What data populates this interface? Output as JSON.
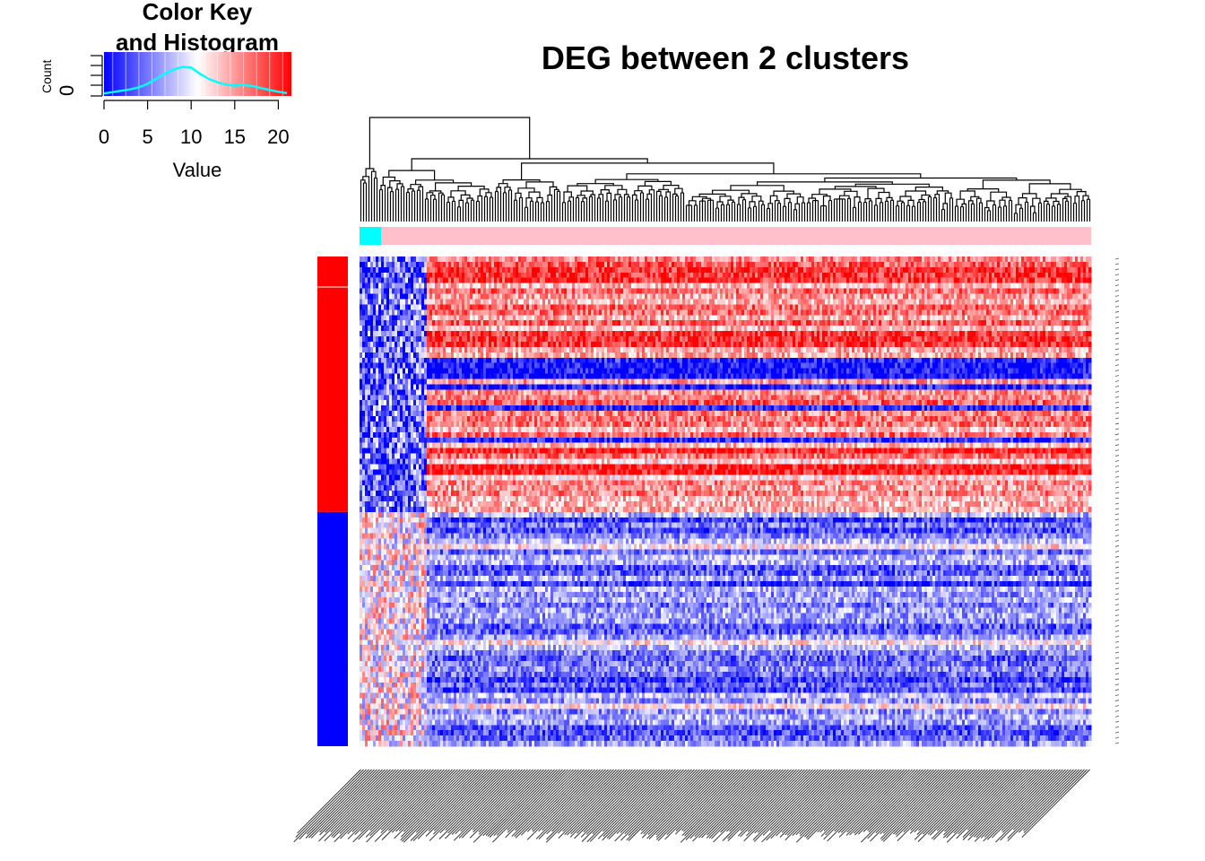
{
  "title": "DEG between 2 clusters",
  "color_key": {
    "title_line1": "Color Key",
    "title_line2": "and Histogram",
    "ylabel": "Count",
    "y_tick": "0",
    "xlabel": "Value",
    "x_ticks": [
      "0",
      "5",
      "10",
      "15",
      "20"
    ]
  },
  "colors": {
    "low": "#0000ff",
    "mid": "#ffffff",
    "high": "#ff0000",
    "histogram_line": "#00ffff",
    "column_cluster_1": "#00ffff",
    "column_cluster_2": "#ffc0cb",
    "row_group_up": "#ff0000",
    "row_group_down": "#0000ff"
  },
  "chart_data": {
    "type": "heatmap",
    "title": "DEG between 2 clusters",
    "value_range": [
      0,
      21.5
    ],
    "color_scale": [
      "#0000ff",
      "#ffffff",
      "#ff0000"
    ],
    "color_key_histogram": {
      "x": [
        0,
        1,
        2,
        3,
        4,
        5,
        6,
        7,
        8,
        9,
        10,
        11,
        12,
        13,
        14,
        15,
        16,
        17,
        18,
        19,
        20,
        21
      ],
      "density": [
        0.02,
        0.06,
        0.1,
        0.14,
        0.2,
        0.3,
        0.45,
        0.6,
        0.72,
        0.8,
        0.78,
        0.6,
        0.45,
        0.35,
        0.28,
        0.25,
        0.27,
        0.24,
        0.18,
        0.12,
        0.07,
        0.03
      ]
    },
    "column_clusters": [
      {
        "cluster": 1,
        "color": "#00ffff",
        "fraction": 0.03
      },
      {
        "cluster": 2,
        "color": "#ffc0cb",
        "fraction": 0.97
      }
    ],
    "row_groups": [
      {
        "group": "up",
        "color": "#ff0000",
        "fraction": 0.525
      },
      {
        "group": "down",
        "color": "#0000ff",
        "fraction": 0.475
      }
    ],
    "grid": false
  }
}
